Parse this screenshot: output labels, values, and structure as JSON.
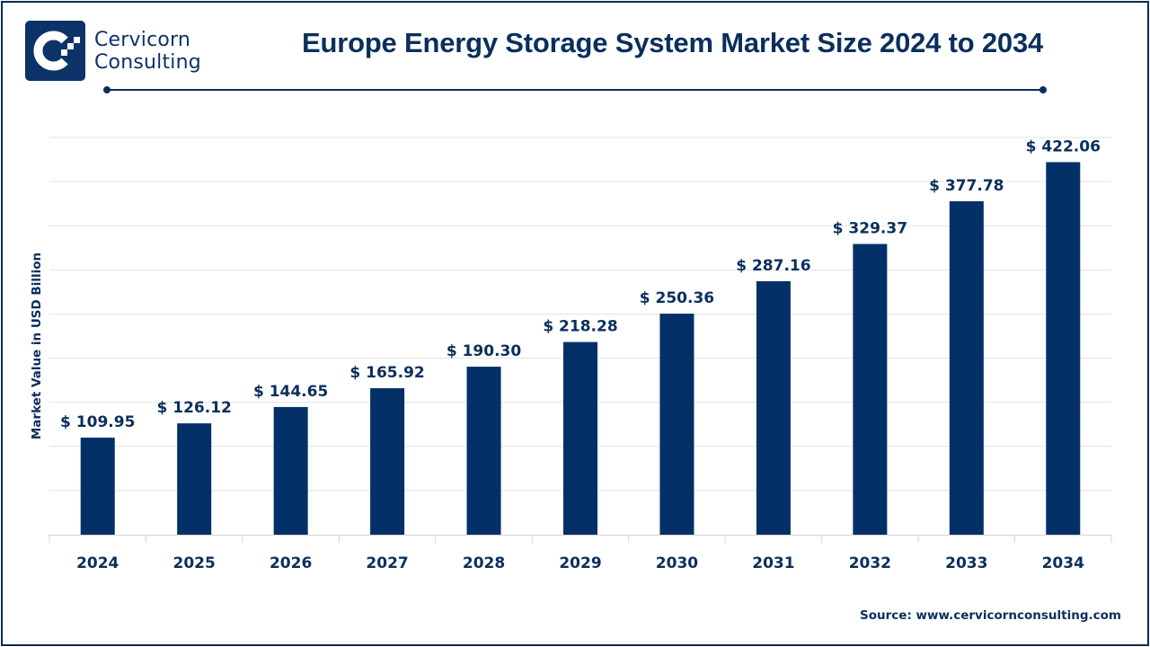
{
  "brand": {
    "name_line1": "Cervicorn",
    "name_line2": "Consulting",
    "logo_icon": "cervicorn-c-logo-icon",
    "color": "#0b3368"
  },
  "header": {
    "title": "Europe Energy Storage System Market Size 2024 to 2034"
  },
  "footer": {
    "source": "Source: www.cervicornconsulting.com"
  },
  "chart_data": {
    "type": "bar",
    "title": "Europe Energy Storage System Market Size 2024 to 2034",
    "xlabel": "",
    "ylabel": "Market Value in USD Billion",
    "categories": [
      "2024",
      "2025",
      "2026",
      "2027",
      "2028",
      "2029",
      "2030",
      "2031",
      "2032",
      "2033",
      "2034"
    ],
    "values": [
      109.95,
      126.12,
      144.65,
      165.92,
      190.3,
      218.28,
      250.36,
      287.16,
      329.37,
      377.78,
      422.06
    ],
    "data_labels": [
      "$ 109.95",
      "$ 126.12",
      "$ 144.65",
      "$ 165.92",
      "$ 190.30",
      "$ 218.28",
      "$ 250.36",
      "$ 287.16",
      "$ 329.37",
      "$ 377.78",
      "$ 422.06"
    ],
    "ylim": [
      0,
      450
    ],
    "y_gridline_step": 50,
    "y_tick_labels_shown": false,
    "grid": true,
    "legend": "none",
    "bar_color": "#023067",
    "label_color": "#0b2f5c",
    "grid_color": "#e3e3e3"
  }
}
